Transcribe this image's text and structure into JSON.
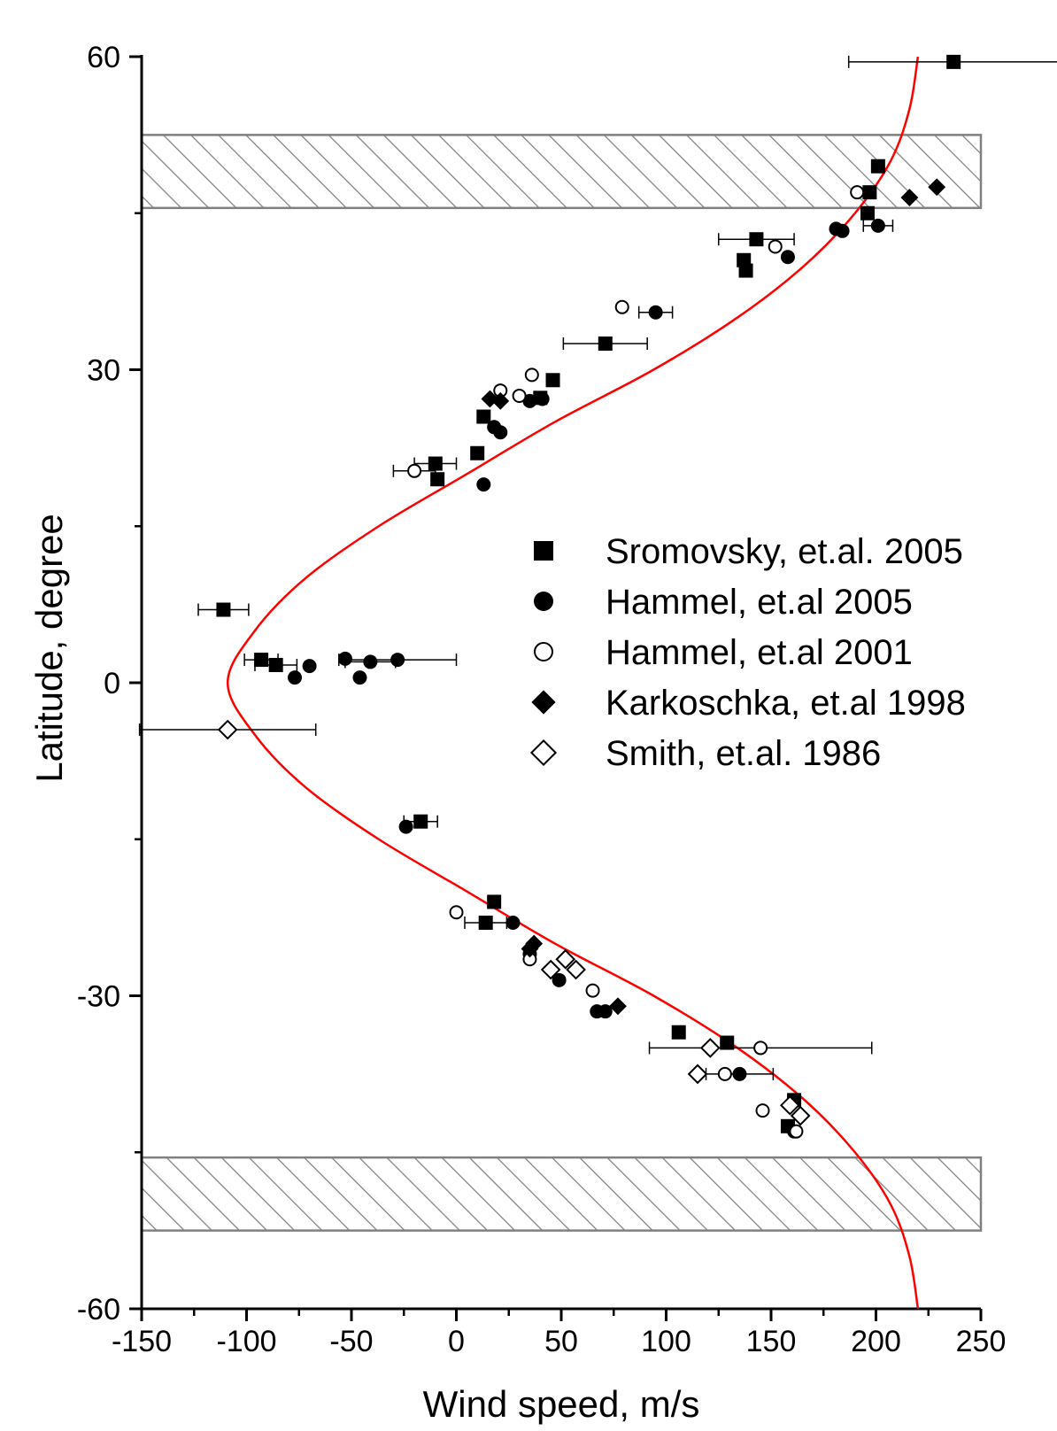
{
  "chart_data": {
    "type": "scatter",
    "xlabel": "Wind speed, m/s",
    "ylabel": "Latitude, degree",
    "xlim": [
      -150,
      250
    ],
    "ylim": [
      -60,
      60
    ],
    "xticks": [
      -150,
      -100,
      -50,
      0,
      50,
      100,
      150,
      200,
      250
    ],
    "yticks": [
      -60,
      -30,
      0,
      30,
      60
    ],
    "grid": false,
    "legend_position": "center-right",
    "colors": {
      "fit_curve": "#ff0000",
      "markers": "#000000",
      "band_hatch": "#808080"
    },
    "shaded_bands": [
      {
        "lat_min": 45.5,
        "lat_max": 52.5
      },
      {
        "lat_min": -52.5,
        "lat_max": -45.5
      }
    ],
    "fit_curve": {
      "lat": [
        -60,
        -55,
        -50,
        -45,
        -40,
        -35,
        -30,
        -25,
        -20,
        -15,
        -10,
        -5,
        0,
        5,
        10,
        15,
        20,
        25,
        30,
        35,
        40,
        45,
        50,
        55,
        60
      ],
      "speed": [
        220,
        216,
        207,
        190,
        166,
        134,
        94,
        47,
        5,
        -37,
        -72,
        -96,
        -109,
        -96,
        -72,
        -37,
        5,
        47,
        94,
        134,
        166,
        190,
        207,
        216,
        220
      ]
    },
    "series": [
      {
        "name": "Sromovsky, et.al. 2005",
        "marker": "square-filled",
        "points": [
          [
            237,
            59.5,
            50
          ],
          [
            201,
            49.5,
            0
          ],
          [
            197,
            47,
            0
          ],
          [
            196,
            45,
            0
          ],
          [
            143,
            42.5,
            18
          ],
          [
            137,
            40.5,
            0
          ],
          [
            138,
            39.5,
            0
          ],
          [
            71,
            32.5,
            20
          ],
          [
            46,
            29,
            0
          ],
          [
            40,
            27.3,
            0
          ],
          [
            13,
            25.5,
            0
          ],
          [
            10,
            22,
            0
          ],
          [
            -10,
            21,
            10
          ],
          [
            -9,
            19.5,
            0
          ],
          [
            -111,
            7,
            12
          ],
          [
            -93,
            2.2,
            8
          ],
          [
            -86,
            1.7,
            10
          ],
          [
            -17,
            -13.3,
            8
          ],
          [
            18,
            -21,
            0
          ],
          [
            14,
            -23,
            10
          ],
          [
            106,
            -33.5,
            0
          ],
          [
            129,
            -34.5,
            0
          ],
          [
            161,
            -40,
            0
          ],
          [
            158,
            -42.5,
            0
          ]
        ]
      },
      {
        "name": "Hammel, et.al 2005",
        "marker": "circle-filled",
        "points": [
          [
            201,
            43.8,
            7
          ],
          [
            184,
            43.3,
            0
          ],
          [
            181,
            43.5,
            0
          ],
          [
            158,
            40.8,
            0
          ],
          [
            95,
            35.5,
            8
          ],
          [
            41,
            27.2,
            0
          ],
          [
            35,
            27,
            0
          ],
          [
            18,
            24.5,
            0
          ],
          [
            21,
            24,
            0
          ],
          [
            13,
            19,
            0
          ],
          [
            -70,
            1.6,
            0
          ],
          [
            -77,
            0.5,
            0
          ],
          [
            -53,
            2.3,
            0
          ],
          [
            -41,
            2,
            12
          ],
          [
            -46,
            0.5,
            0
          ],
          [
            -28,
            2.2,
            28
          ],
          [
            -24,
            -13.8,
            0
          ],
          [
            27,
            -23,
            0
          ],
          [
            35,
            -26,
            0
          ],
          [
            49,
            -28.5,
            0
          ],
          [
            67,
            -31.5,
            0
          ],
          [
            71,
            -31.5,
            0
          ],
          [
            135,
            -37.5,
            16
          ],
          [
            161,
            -43,
            0
          ]
        ]
      },
      {
        "name": "Hammel, et.al 2001",
        "marker": "circle-open",
        "points": [
          [
            191,
            47,
            0
          ],
          [
            152,
            41.8,
            0
          ],
          [
            79,
            36,
            0
          ],
          [
            21,
            28,
            0
          ],
          [
            30,
            27.5,
            0
          ],
          [
            36,
            29.5,
            0
          ],
          [
            -20,
            20.3,
            10
          ],
          [
            0,
            -22,
            0
          ],
          [
            35,
            -26.5,
            0
          ],
          [
            65,
            -29.5,
            0
          ],
          [
            145,
            -35,
            53
          ],
          [
            128,
            -37.5,
            0
          ],
          [
            146,
            -41,
            0
          ],
          [
            162,
            -43,
            0
          ]
        ]
      },
      {
        "name": "Karkoschka, et.al 1998",
        "marker": "diamond-filled",
        "points": [
          [
            229,
            47.5,
            0
          ],
          [
            216,
            46.5,
            0
          ],
          [
            16,
            27.2,
            0
          ],
          [
            21,
            27,
            0
          ],
          [
            37,
            -25,
            0
          ],
          [
            35,
            -25.5,
            0
          ],
          [
            77,
            -31,
            0
          ]
        ]
      },
      {
        "name": "Smith, et.al. 1986",
        "marker": "diamond-open",
        "points": [
          [
            -109,
            -4.5,
            42
          ],
          [
            45,
            -27.5,
            0
          ],
          [
            52,
            -26.5,
            0
          ],
          [
            57,
            -27.5,
            0
          ],
          [
            121,
            -35,
            0
          ],
          [
            115,
            -37.5,
            0
          ],
          [
            159,
            -40.5,
            0
          ],
          [
            164,
            -41.5,
            0
          ]
        ]
      }
    ]
  }
}
